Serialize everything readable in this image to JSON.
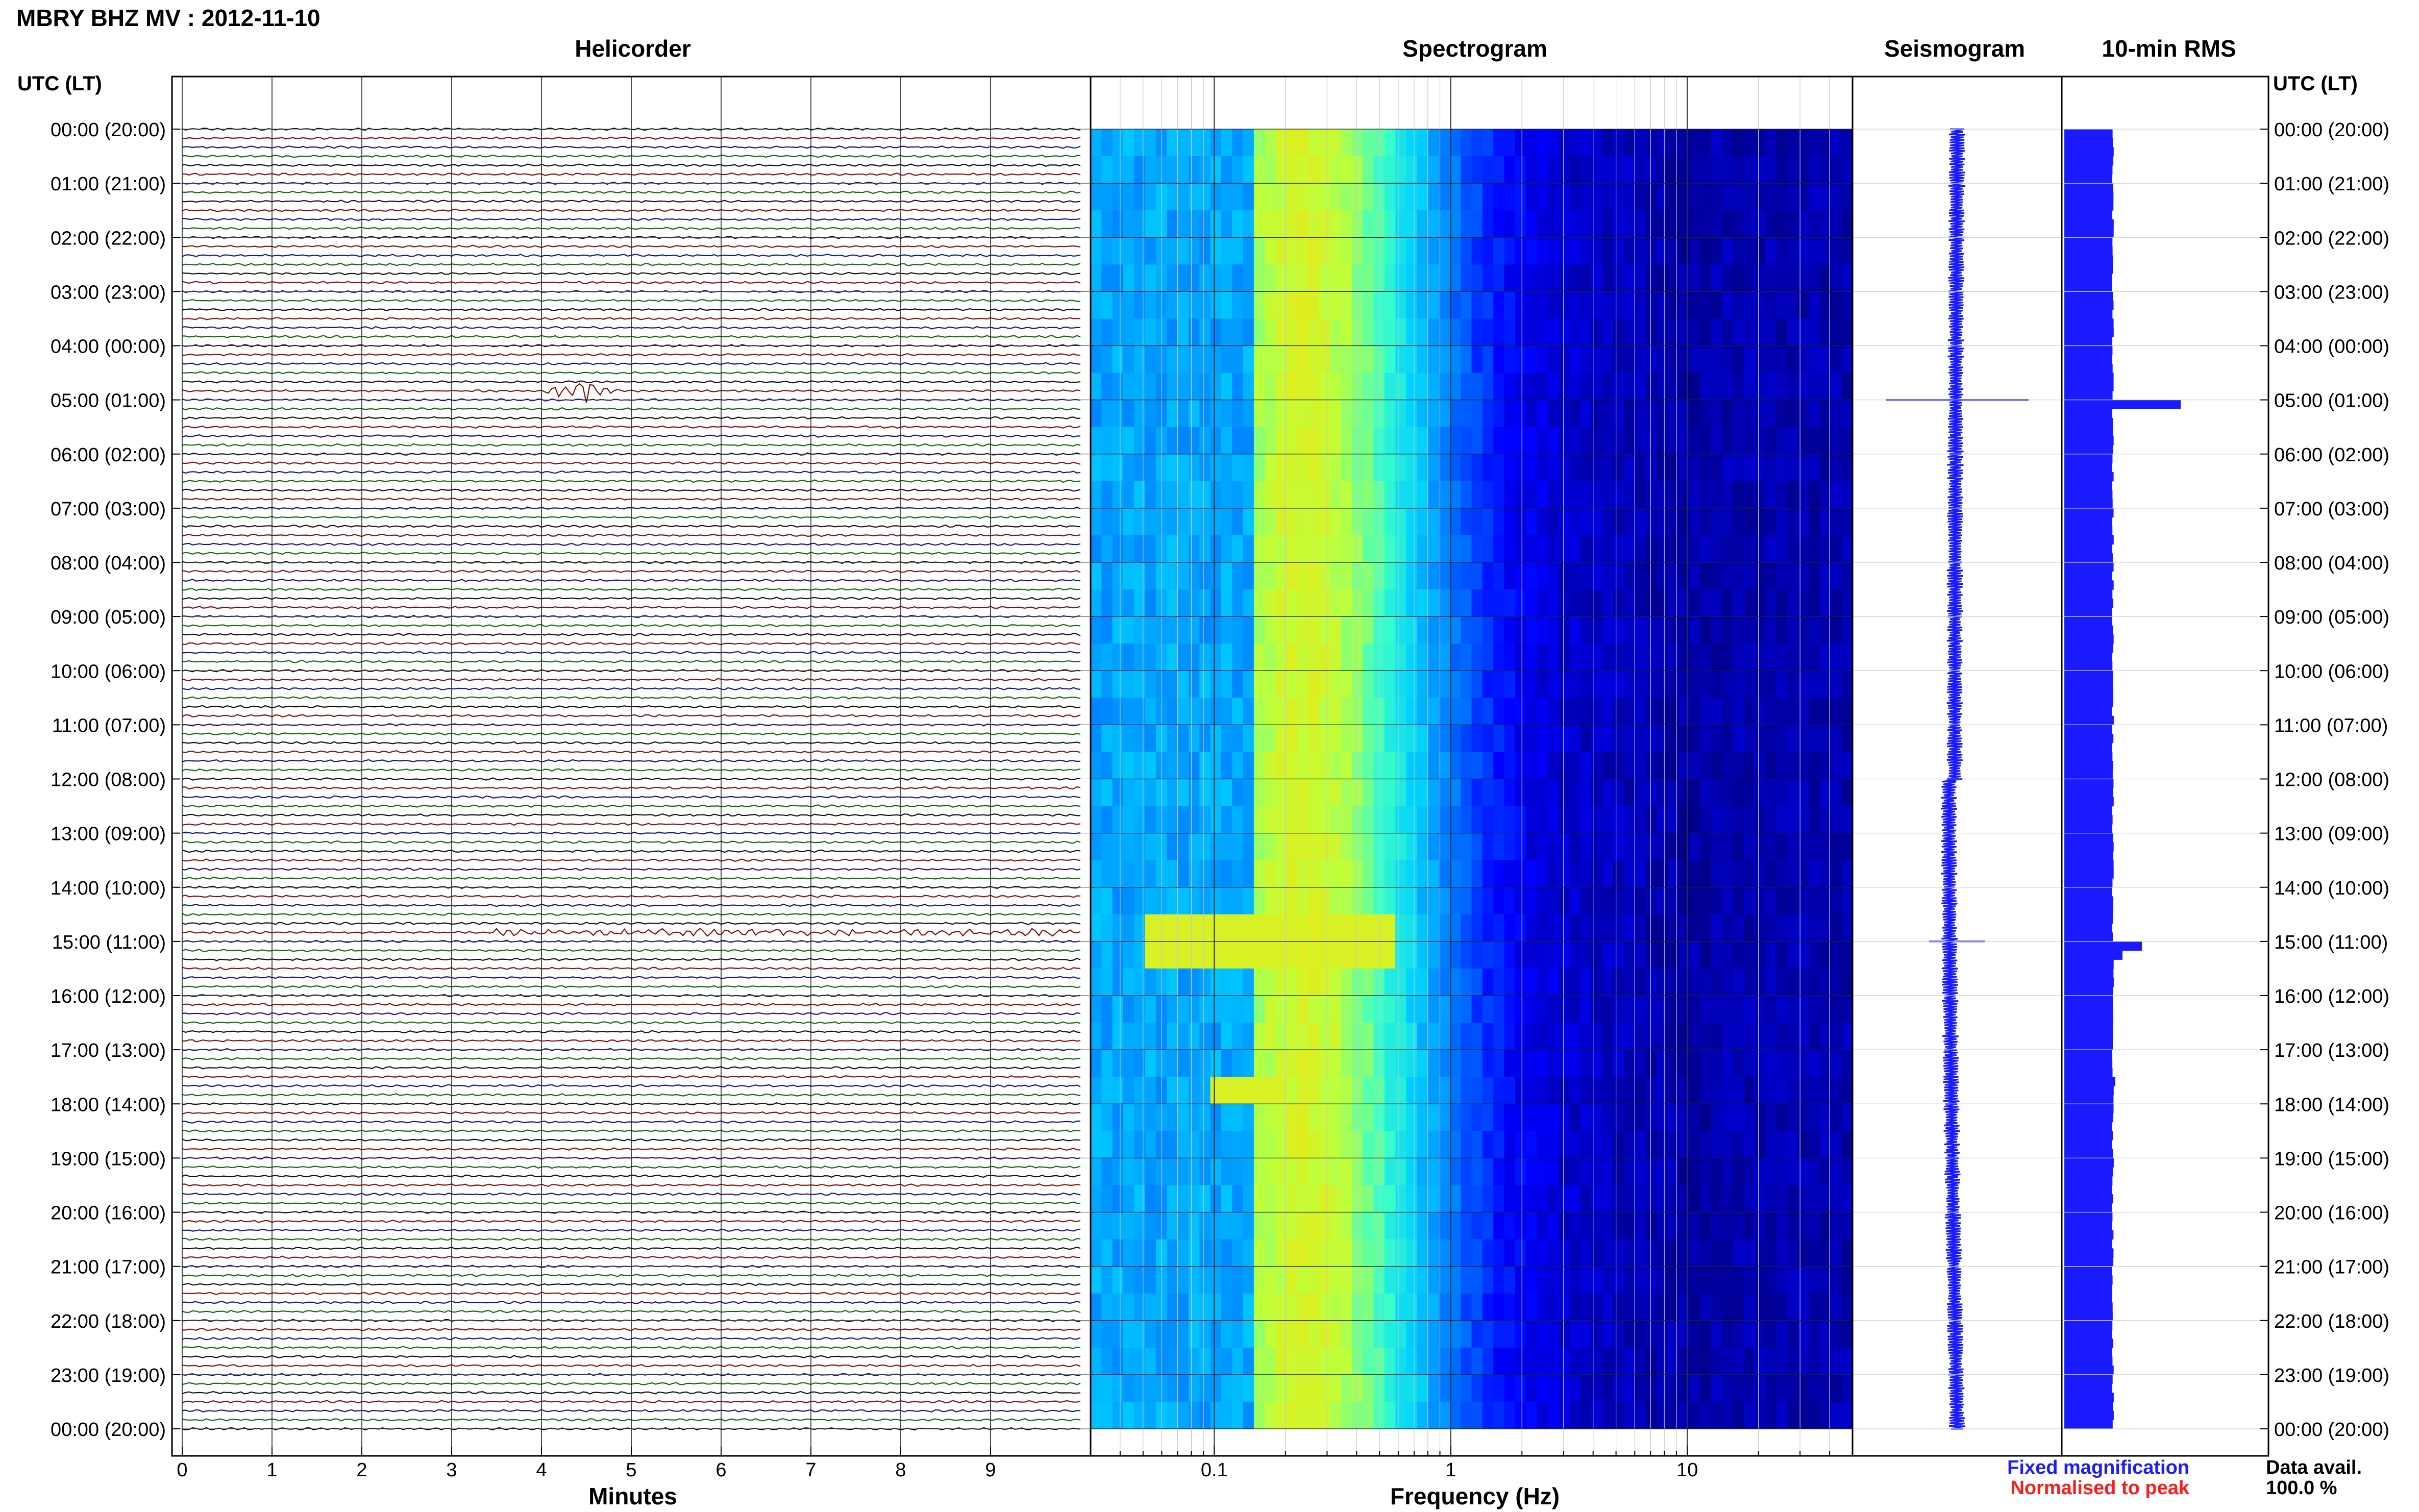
{
  "title": "MBRY BHZ MV : 2012-11-10",
  "panels": {
    "helicorder": "Helicorder",
    "spectrogram": "Spectrogram",
    "seismogram": "Seismogram",
    "rms": "10-min RMS"
  },
  "time_axis": {
    "header": "UTC (LT)",
    "labels": [
      "00:00 (20:00)",
      "01:00 (21:00)",
      "02:00 (22:00)",
      "03:00 (23:00)",
      "04:00 (00:00)",
      "05:00 (01:00)",
      "06:00 (02:00)",
      "07:00 (03:00)",
      "08:00 (04:00)",
      "09:00 (05:00)",
      "10:00 (06:00)",
      "11:00 (07:00)",
      "12:00 (08:00)",
      "13:00 (09:00)",
      "14:00 (10:00)",
      "15:00 (11:00)",
      "16:00 (12:00)",
      "17:00 (13:00)",
      "18:00 (14:00)",
      "19:00 (15:00)",
      "20:00 (16:00)",
      "21:00 (17:00)",
      "22:00 (18:00)",
      "23:00 (19:00)",
      "00:00 (20:00)"
    ]
  },
  "legend": {
    "fixed": "Fixed magnification",
    "normalised": "Normalised to peak",
    "fixed_color": "#1c1cff",
    "normalised_color": "#ff1a1a"
  },
  "data_avail": {
    "label": "Data avail.",
    "value": "100.0 %"
  },
  "colors": {
    "trace_black": "#111111",
    "trace_red": "#8b0d0d",
    "trace_blue": "#14148c",
    "trace_green": "#0d6b0d",
    "seismogram": "#1a1aff",
    "rms": "#1a1aff"
  },
  "chart_data": [
    {
      "type": "line",
      "panel": "Helicorder",
      "xlabel": "Minutes",
      "x_ticks": [
        0,
        1,
        2,
        3,
        4,
        5,
        6,
        7,
        8,
        9
      ],
      "xlim": [
        0,
        10
      ],
      "lines_per_hour": 6,
      "hours": 24,
      "trace_color_cycle": [
        "black",
        "red",
        "blue",
        "green"
      ],
      "events": [
        {
          "time_utc": "04:50",
          "minute_start": 4.0,
          "minute_end": 5.0,
          "description": "large event"
        },
        {
          "time_utc": "14:50",
          "minute_start": 3.5,
          "minute_end": 10.0,
          "description": "emergent signal"
        }
      ]
    },
    {
      "type": "heatmap",
      "panel": "Spectrogram",
      "xlabel": "Frequency (Hz)",
      "x_scale": "log",
      "x_ticks": [
        0.1,
        1,
        10
      ],
      "x_tick_labels": [
        "0.1",
        "1",
        "10"
      ],
      "xlim": [
        0.03,
        50
      ],
      "colormap": "jet",
      "broadband_peak_hz": 0.25,
      "bright_bands": [
        {
          "time_utc": "15:00",
          "freq_range": [
            0.05,
            0.6
          ]
        },
        {
          "time_utc": "17:45",
          "freq_range": [
            0.1,
            0.2
          ]
        }
      ]
    },
    {
      "type": "line",
      "panel": "Seismogram",
      "note": "24-hour compressed seismogram",
      "spikes_utc": [
        "05:00",
        "15:00"
      ]
    },
    {
      "type": "bar",
      "panel": "10-min RMS",
      "orientation": "horizontal",
      "time_axis": "UTC hours 0-24",
      "baseline_relative": 1.0,
      "peaks": [
        {
          "time_utc": "05:00",
          "relative_value": 2.4
        },
        {
          "time_utc": "15:00",
          "relative_value": 1.6
        },
        {
          "time_utc": "15:10",
          "relative_value": 1.2
        },
        {
          "time_utc": "17:30",
          "relative_value": 1.05
        }
      ]
    }
  ]
}
